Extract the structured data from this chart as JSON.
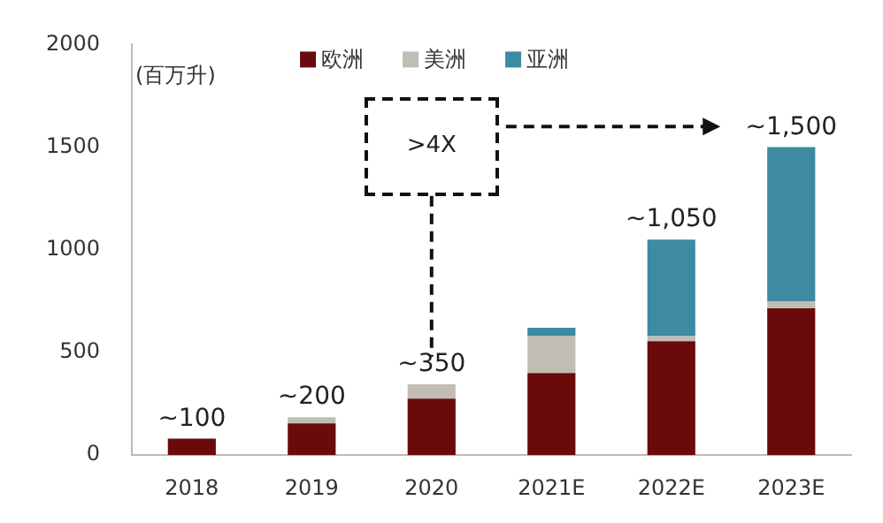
{
  "chart_data": {
    "type": "bar",
    "stacked": true,
    "ylabel": "(百万升)",
    "categories": [
      "2018",
      "2019",
      "2020",
      "2021E",
      "2022E",
      "2023E"
    ],
    "series": [
      {
        "name": "欧洲",
        "color": "#6b0a0a",
        "values": [
          80,
          155,
          275,
          400,
          555,
          715
        ]
      },
      {
        "name": "美洲",
        "color": "#c0bdb3",
        "values": [
          null,
          30,
          70,
          180,
          25,
          35
        ]
      },
      {
        "name": "亚洲",
        "color": "#3e8aa0",
        "values": [
          null,
          null,
          null,
          40,
          470,
          750
        ]
      }
    ],
    "ylim": [
      0,
      2000
    ],
    "yticks": [
      0,
      500,
      1000,
      1500,
      2000
    ],
    "grid": false,
    "legend": "top",
    "annotations": [
      {
        "text": "~100",
        "x": "2018",
        "y": 80
      },
      {
        "text": "~200",
        "x": "2019",
        "y": 185
      },
      {
        "text": "~350",
        "x": "2020",
        "y": 345
      },
      {
        "text": "~1,050",
        "x": "2022E",
        "y": 1050
      },
      {
        "text": "~1,500",
        "x": "2023E",
        "y": 1500
      },
      ">4X"
    ]
  }
}
